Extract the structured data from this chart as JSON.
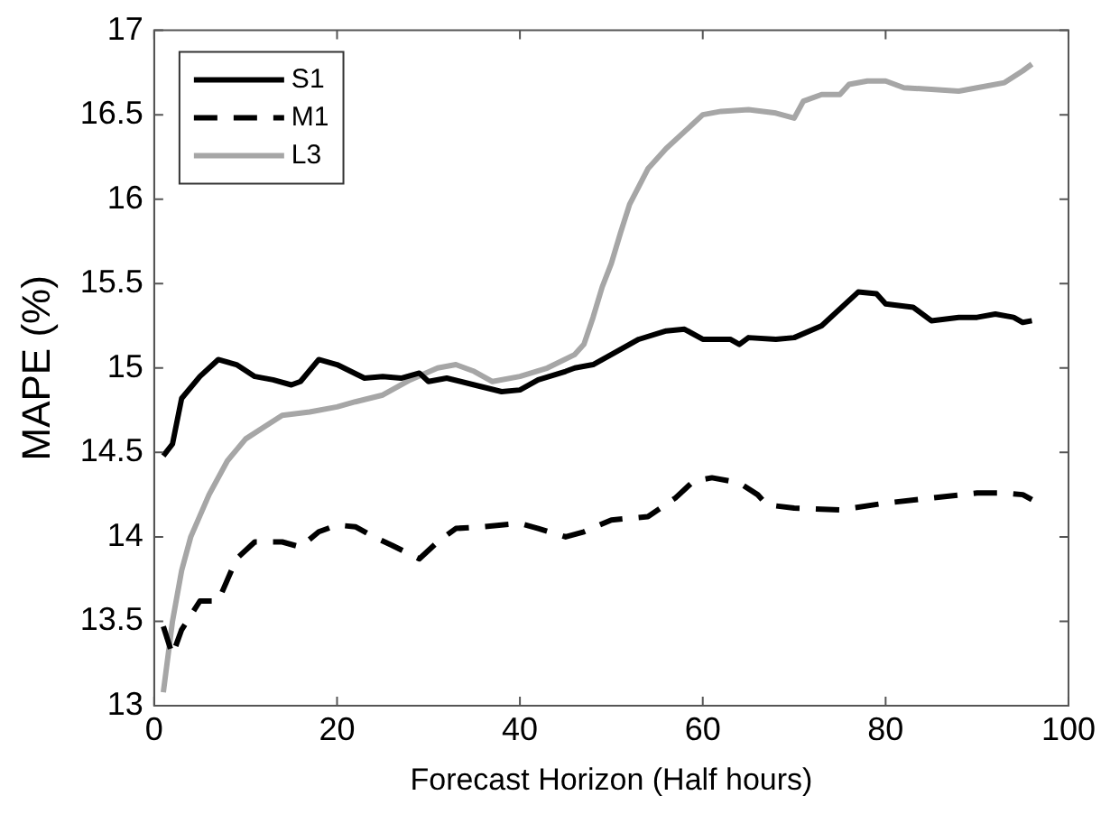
{
  "chart_data": {
    "type": "line",
    "xlabel": "Forecast Horizon (Half hours)",
    "ylabel": "MAPE (%)",
    "xlim": [
      0,
      100
    ],
    "xticks": [
      0,
      20,
      40,
      60,
      80,
      100
    ],
    "ylim": [
      13,
      17
    ],
    "yticks": [
      13,
      13.5,
      14,
      14.5,
      15,
      15.5,
      16,
      16.5,
      17
    ],
    "grid": false,
    "legend": "top left",
    "marker": "none",
    "series": [
      {
        "name": "S1",
        "color": "#000000",
        "line_style": "solid",
        "x": [
          1,
          2,
          3,
          5,
          7,
          9,
          11,
          13,
          15,
          16,
          18,
          20,
          23,
          25,
          27,
          29,
          30,
          32,
          35,
          38,
          40,
          42,
          45,
          46,
          48,
          50,
          53,
          56,
          58,
          60,
          63,
          64,
          65,
          68,
          70,
          73,
          77,
          79,
          80,
          83,
          85,
          88,
          90,
          92,
          94,
          95,
          96
        ],
        "values": [
          14.48,
          14.55,
          14.82,
          14.95,
          15.05,
          15.02,
          14.95,
          14.93,
          14.9,
          14.92,
          15.05,
          15.02,
          14.94,
          14.95,
          14.94,
          14.97,
          14.92,
          14.94,
          14.9,
          14.86,
          14.87,
          14.93,
          14.98,
          15.0,
          15.02,
          15.08,
          15.17,
          15.22,
          15.23,
          15.17,
          15.17,
          15.14,
          15.18,
          15.17,
          15.18,
          15.25,
          15.45,
          15.44,
          15.38,
          15.36,
          15.28,
          15.3,
          15.3,
          15.32,
          15.3,
          15.27,
          15.28
        ]
      },
      {
        "name": "M1",
        "color": "#000000",
        "line_style": "dashed",
        "x": [
          1,
          2,
          3,
          5,
          7,
          9,
          11,
          14,
          16,
          18,
          20,
          22,
          24,
          26,
          29,
          31,
          33,
          36,
          40,
          42,
          45,
          47,
          50,
          54,
          57,
          59,
          61,
          64,
          66,
          67,
          70,
          75,
          80,
          85,
          90,
          93,
          95,
          96
        ],
        "values": [
          13.47,
          13.3,
          13.45,
          13.62,
          13.62,
          13.87,
          13.97,
          13.97,
          13.94,
          14.03,
          14.07,
          14.06,
          14.0,
          13.95,
          13.87,
          13.97,
          14.05,
          14.06,
          14.08,
          14.05,
          14.0,
          14.03,
          14.1,
          14.12,
          14.23,
          14.33,
          14.35,
          14.32,
          14.25,
          14.19,
          14.17,
          14.16,
          14.2,
          14.23,
          14.26,
          14.26,
          14.25,
          14.22
        ]
      },
      {
        "name": "L3",
        "color": "#a6a6a6",
        "line_style": "solid",
        "x": [
          1,
          2,
          3,
          4,
          6,
          8,
          10,
          12,
          14,
          17,
          20,
          22,
          25,
          28,
          31,
          33,
          35,
          37,
          40,
          43,
          46,
          47,
          48,
          49,
          50,
          51,
          52,
          54,
          56,
          58,
          60,
          62,
          65,
          68,
          70,
          71,
          73,
          75,
          76,
          78,
          80,
          82,
          85,
          88,
          90,
          93,
          95,
          96
        ],
        "values": [
          13.08,
          13.5,
          13.8,
          14.0,
          14.25,
          14.45,
          14.58,
          14.65,
          14.72,
          14.74,
          14.77,
          14.8,
          14.84,
          14.93,
          15.0,
          15.02,
          14.98,
          14.92,
          14.95,
          15.0,
          15.08,
          15.14,
          15.3,
          15.48,
          15.62,
          15.8,
          15.97,
          16.18,
          16.3,
          16.4,
          16.5,
          16.52,
          16.53,
          16.51,
          16.48,
          16.58,
          16.62,
          16.62,
          16.68,
          16.7,
          16.7,
          16.66,
          16.65,
          16.64,
          16.66,
          16.69,
          16.76,
          16.8
        ]
      }
    ]
  }
}
